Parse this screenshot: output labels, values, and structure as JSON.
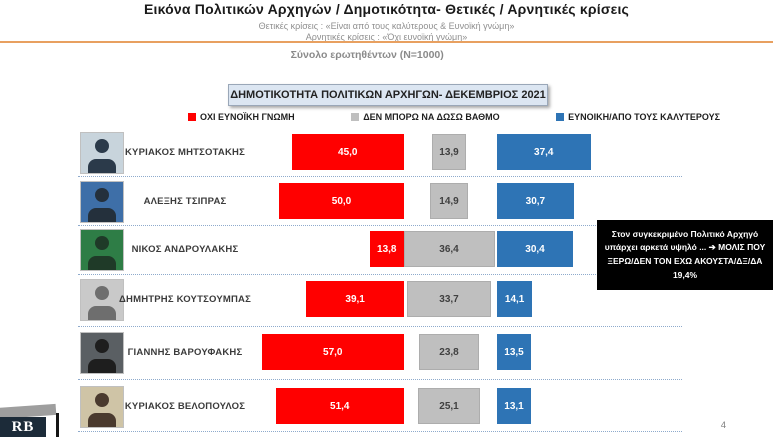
{
  "header": {
    "title": "Εικόνα Πολιτικών Αρχηγών  / Δημοτικότητα- Θετικές / Αρνητικές κρίσεις",
    "subtitle_positive": "Θετικές κρίσεις : «Είναι από τους καλύτερους &  Ευνοϊκή γνώμη»",
    "subtitle_negative": "Αρνητικές κρίσεις : «Όχι ευνοϊκή γνώμη»",
    "sample_note": "Σύνολο ερωτηθέντων (N=1000)"
  },
  "chart_title": "ΔΗΜΟΤΙΚΟΤΗΤΑ ΠΟΛΙΤΙΚΩΝ ΑΡΧΗΓΩΝ- ΔΕΚΕΜΒΡΙΟΣ 2021",
  "legend": [
    {
      "label": "ΟΧΙ ΕΥΝΟΪΚΗ ΓΝΩΜΗ",
      "color": "#FF0000"
    },
    {
      "label": "ΔΕΝ ΜΠΟΡΩ ΝΑ ΔΩΣΩ ΒΑΘΜΟ",
      "color": "#BFBFBF"
    },
    {
      "label": "ΕΥΝΟΙΚΗ/ΑΠΟ ΤΟΥΣ ΚΑΛΥΤΕΡΟΥΣ",
      "color": "#2E74B5"
    }
  ],
  "chart_data": {
    "type": "bar",
    "subtype": "diverging-horizontal-stacked",
    "value_format": "comma-decimal-percent",
    "categories": [
      "ΚΥΡΙΑΚΟΣ ΜΗΤΣΟΤΑΚΗΣ",
      "ΑΛΕΞΗΣ ΤΣΙΠΡΑΣ",
      "ΝΙΚΟΣ ΑΝΔΡΟΥΛΑΚΗΣ",
      "ΔΗΜΗΤΡΗΣ ΚΟΥΤΣΟΥΜΠΑΣ",
      "ΓΙΑΝΝΗΣ ΒΑΡΟΥΦΑΚΗΣ",
      "ΚΥΡΙΑΚΟΣ ΒΕΛΟΠΟΥΛΟΣ"
    ],
    "series": [
      {
        "name": "ΟΧΙ ΕΥΝΟΪΚΗ ΓΝΩΜΗ",
        "color": "#FF0000",
        "label_color": "#ffffff",
        "values": [
          45.0,
          50.0,
          13.8,
          39.1,
          57.0,
          51.4
        ]
      },
      {
        "name": "ΔΕΝ ΜΠΟΡΩ ΝΑ ΔΩΣΩ ΒΑΘΜΟ",
        "color": "#BFBFBF",
        "label_color": "#404040",
        "values": [
          13.9,
          14.9,
          36.4,
          33.7,
          23.8,
          25.1
        ]
      },
      {
        "name": "ΕΥΝΟΙΚΗ/ΑΠΟ ΤΟΥΣ ΚΑΛΥΤΕΡΟΥΣ",
        "color": "#2E74B5",
        "label_color": "#ffffff",
        "values": [
          37.4,
          30.7,
          30.4,
          14.1,
          13.5,
          13.1
        ]
      }
    ]
  },
  "photos": [
    {
      "bg": "#C8D4DC",
      "fg": "#2B3A4A"
    },
    {
      "bg": "#3E6FA8",
      "fg": "#24303C"
    },
    {
      "bg": "#2E7D46",
      "fg": "#1F3A28"
    },
    {
      "bg": "#C9C9C9",
      "fg": "#6E6E6E"
    },
    {
      "bg": "#5A5F63",
      "fg": "#1E1E1E"
    },
    {
      "bg": "#CFC4A6",
      "fg": "#4A3A2E"
    }
  ],
  "annotation": {
    "text": "Στον συγκεκριμένο Πολιτικό Αρχηγό υπάρχει αρκετά υψηλό ... ➔ ΜΟΛΙΣ ΠΟΥ ΞΕΡΩ/ΔΕΝ ΤΟΝ ΕΧΩ ΑΚΟΥΣΤΑ/ΔΞ/ΔΑ 19,4%"
  },
  "footer": {
    "page_number": "4",
    "logo_text": "RB"
  },
  "colors": {
    "accent_line": "#E8A060",
    "separator": "#8EAACC",
    "annotation_bg": "#000000"
  }
}
